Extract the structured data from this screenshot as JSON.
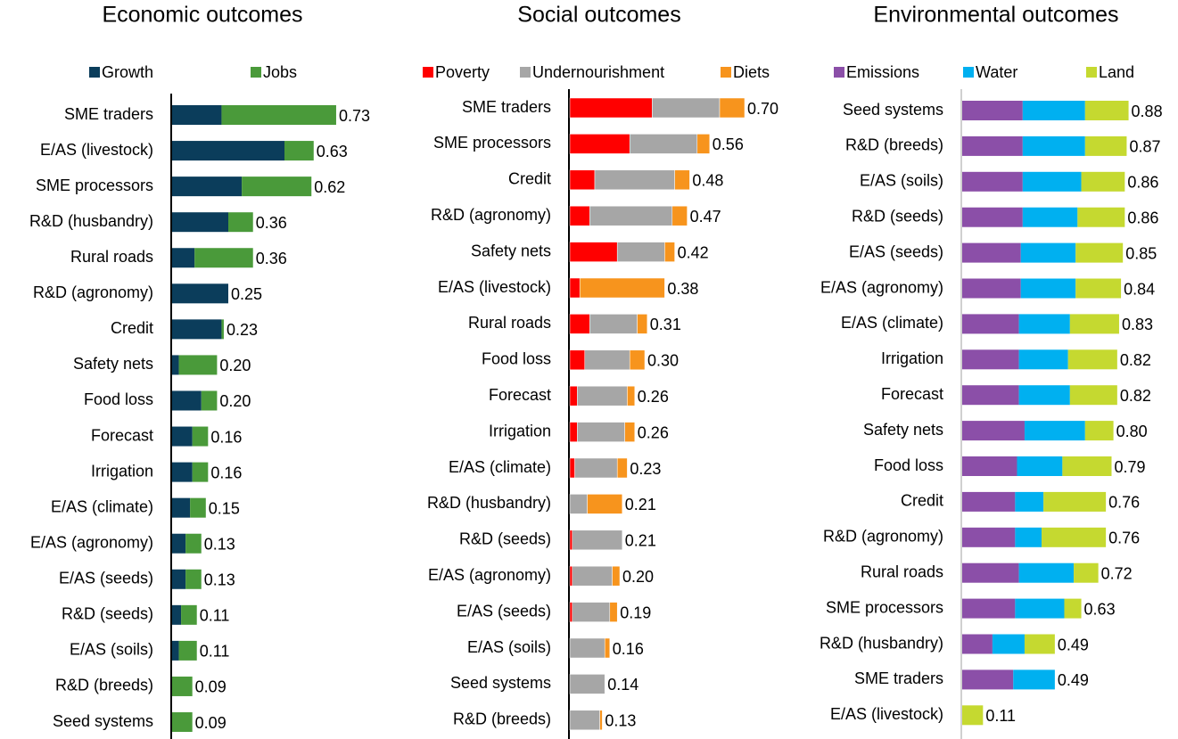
{
  "chart_data": [
    {
      "type": "stacked-bar-horizontal",
      "title": "Economic outcomes",
      "categories": [
        "SME traders",
        "E/AS (livestock)",
        "SME processors",
        "R&D (husbandry)",
        "Rural roads",
        "R&D (agronomy)",
        "Credit",
        "Safety nets",
        "Food loss",
        "Forecast",
        "Irrigation",
        "E/AS (climate)",
        "E/AS (agronomy)",
        "E/AS (seeds)",
        "R&D (seeds)",
        "E/AS (soils)",
        "R&D (breeds)",
        "Seed systems"
      ],
      "series": [
        {
          "name": "Growth",
          "color": "#0b3d5b",
          "values": [
            0.22,
            0.5,
            0.31,
            0.25,
            0.1,
            0.25,
            0.22,
            0.03,
            0.13,
            0.09,
            0.09,
            0.08,
            0.06,
            0.06,
            0.04,
            0.03,
            0,
            0
          ]
        },
        {
          "name": "Jobs",
          "color": "#4a9a3a",
          "values": [
            0.51,
            0.13,
            0.31,
            0.11,
            0.26,
            0,
            0.01,
            0.17,
            0.07,
            0.07,
            0.07,
            0.07,
            0.07,
            0.07,
            0.07,
            0.08,
            0.09,
            0.09
          ]
        }
      ],
      "total_labels": [
        "0.73",
        "0.63",
        "0.62",
        "0.36",
        "0.36",
        "0.25",
        "0.23",
        "0.20",
        "0.20",
        "0.16",
        "0.16",
        "0.15",
        "0.13",
        "0.13",
        "0.11",
        "0.11",
        "0.09",
        "0.09"
      ],
      "legend": "top"
    },
    {
      "type": "stacked-bar-horizontal",
      "title": "Social outcomes",
      "categories": [
        "SME traders",
        "SME processors",
        "Credit",
        "R&D (agronomy)",
        "Safety nets",
        "E/AS (livestock)",
        "Rural roads",
        "Food loss",
        "Forecast",
        "Irrigation",
        "E/AS (climate)",
        "R&D (husbandry)",
        "R&D (seeds)",
        "E/AS (agronomy)",
        "E/AS (seeds)",
        "E/AS (soils)",
        "Seed systems",
        "R&D (breeds)"
      ],
      "series": [
        {
          "name": "Poverty",
          "color": "#ff0000",
          "values": [
            0.33,
            0.24,
            0.1,
            0.08,
            0.19,
            0.04,
            0.08,
            0.06,
            0.03,
            0.03,
            0.02,
            0,
            0.01,
            0.01,
            0.01,
            0,
            0,
            0
          ]
        },
        {
          "name": "Undernourishment",
          "color": "#a6a6a6",
          "values": [
            0.27,
            0.27,
            0.32,
            0.33,
            0.19,
            0,
            0.19,
            0.18,
            0.2,
            0.19,
            0.17,
            0.07,
            0.2,
            0.16,
            0.15,
            0.14,
            0.14,
            0.12
          ]
        },
        {
          "name": "Diets",
          "color": "#f7941d",
          "values": [
            0.1,
            0.05,
            0.06,
            0.06,
            0.04,
            0.34,
            0.04,
            0.06,
            0.03,
            0.04,
            0.04,
            0.14,
            0,
            0.03,
            0.03,
            0.02,
            0,
            0.01
          ]
        }
      ],
      "total_labels": [
        "0.70",
        "0.56",
        "0.48",
        "0.47",
        "0.42",
        "0.38",
        "0.31",
        "0.30",
        "0.26",
        "0.26",
        "0.23",
        "0.21",
        "0.21",
        "0.20",
        "0.19",
        "0.16",
        "0.14",
        "0.13"
      ],
      "legend": "top"
    },
    {
      "type": "stacked-bar-horizontal",
      "title": "Environmental outcomes",
      "categories": [
        "Seed systems",
        "R&D (breeds)",
        "E/AS (soils)",
        "R&D (seeds)",
        "E/AS (seeds)",
        "E/AS (agronomy)",
        "E/AS (climate)",
        "Irrigation",
        "Forecast",
        "Safety nets",
        "Food loss",
        "Credit",
        "R&D (agronomy)",
        "Rural roads",
        "SME processors",
        "R&D (husbandry)",
        "SME traders",
        "E/AS (livestock)"
      ],
      "series": [
        {
          "name": "Emissions",
          "color": "#8b4fa8",
          "values": [
            0.32,
            0.32,
            0.32,
            0.32,
            0.31,
            0.31,
            0.3,
            0.3,
            0.3,
            0.33,
            0.29,
            0.28,
            0.28,
            0.3,
            0.28,
            0.16,
            0.27,
            0
          ]
        },
        {
          "name": "Water",
          "color": "#00b0f0",
          "values": [
            0.33,
            0.33,
            0.31,
            0.29,
            0.29,
            0.29,
            0.27,
            0.26,
            0.27,
            0.32,
            0.24,
            0.15,
            0.14,
            0.29,
            0.26,
            0.17,
            0.22,
            0
          ]
        },
        {
          "name": "Land",
          "color": "#c5d930",
          "values": [
            0.23,
            0.22,
            0.23,
            0.25,
            0.25,
            0.24,
            0.26,
            0.26,
            0.25,
            0.15,
            0.26,
            0.33,
            0.34,
            0.13,
            0.09,
            0.16,
            0,
            0.11
          ]
        }
      ],
      "total_labels": [
        "0.88",
        "0.87",
        "0.86",
        "0.86",
        "0.85",
        "0.84",
        "0.83",
        "0.82",
        "0.82",
        "0.80",
        "0.79",
        "0.76",
        "0.76",
        "0.72",
        "0.63",
        "0.49",
        "0.49",
        "0.11"
      ],
      "legend": "top"
    }
  ]
}
